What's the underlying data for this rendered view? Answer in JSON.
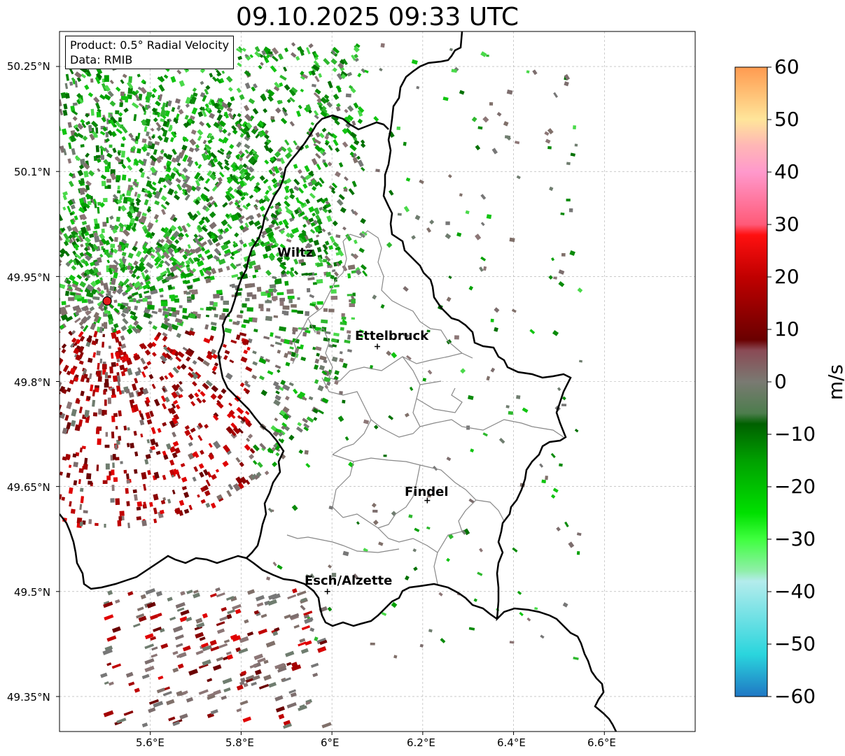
{
  "title": "09.10.2025 09:33 UTC",
  "info": {
    "product": "Product: 0.5° Radial Velocity",
    "source": "Data: RMIB"
  },
  "map": {
    "lon_range": [
      5.4,
      6.8
    ],
    "lat_range": [
      49.3,
      50.3
    ],
    "lon_ticks": [
      "5.6°E",
      "5.8°E",
      "6°E",
      "6.2°E",
      "6.4°E",
      "6.6°E"
    ],
    "lat_ticks": [
      "50.25°N",
      "50.1°N",
      "49.95°N",
      "49.8°N",
      "49.65°N",
      "49.5°N",
      "49.35°N"
    ],
    "grid": true,
    "radar_site": {
      "lon": 5.505,
      "lat": 49.915,
      "color": "#e41a1c"
    },
    "cities": [
      {
        "name": "Wiltz",
        "lon": 5.93,
        "lat": 49.97
      },
      {
        "name": "Ettelbruck",
        "lon": 6.1,
        "lat": 49.85
      },
      {
        "name": "Findel",
        "lon": 6.21,
        "lat": 49.63
      },
      {
        "name": "Esch/Alzette",
        "lon": 5.99,
        "lat": 49.5
      }
    ]
  },
  "colorbar": {
    "label": "m/s",
    "min": -60,
    "max": 60,
    "ticks": [
      "60",
      "50",
      "40",
      "30",
      "20",
      "10",
      "0",
      "−10",
      "−20",
      "−30",
      "−40",
      "−50",
      "−60"
    ],
    "stops": [
      {
        "v": -60,
        "c": "#1f77c4"
      },
      {
        "v": -52,
        "c": "#2ad5dd"
      },
      {
        "v": -38,
        "c": "#b4ecec"
      },
      {
        "v": -36,
        "c": "#8fefa8"
      },
      {
        "v": -30,
        "c": "#3fff3f"
      },
      {
        "v": -25,
        "c": "#00e000"
      },
      {
        "v": -15,
        "c": "#00a000"
      },
      {
        "v": -8,
        "c": "#006000"
      },
      {
        "v": -6,
        "c": "#4d7d4d"
      },
      {
        "v": 0,
        "c": "#7a7a72"
      },
      {
        "v": 6,
        "c": "#8a4a55"
      },
      {
        "v": 8,
        "c": "#6a0000"
      },
      {
        "v": 20,
        "c": "#c00000"
      },
      {
        "v": 28,
        "c": "#ff1010"
      },
      {
        "v": 30,
        "c": "#ff5a78"
      },
      {
        "v": 40,
        "c": "#ff99cc"
      },
      {
        "v": 45,
        "c": "#ffb6b6"
      },
      {
        "v": 50,
        "c": "#ffe59a"
      },
      {
        "v": 60,
        "c": "#ff9a50"
      }
    ]
  }
}
